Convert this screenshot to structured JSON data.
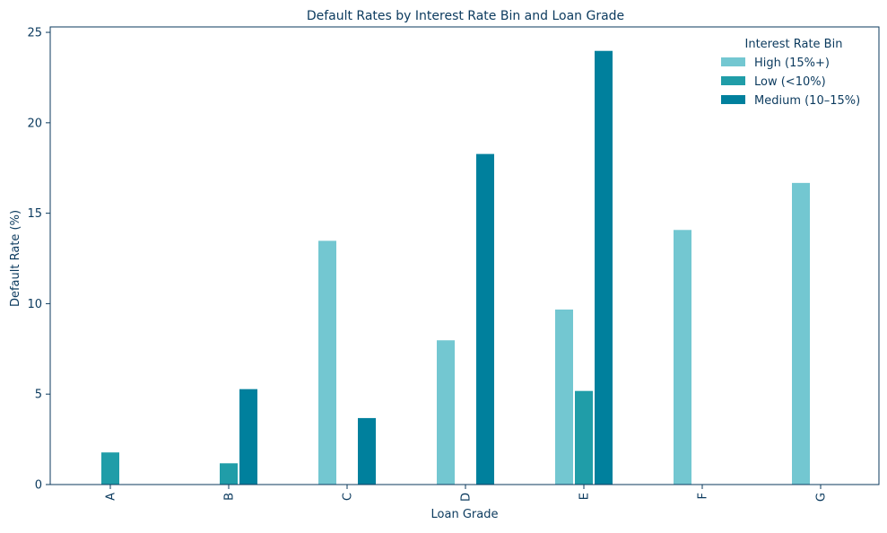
{
  "chart_data": {
    "type": "bar",
    "title": "Default Rates by Interest Rate Bin and Loan Grade",
    "xlabel": "Loan Grade",
    "ylabel": "Default Rate (%)",
    "categories": [
      "A",
      "B",
      "C",
      "D",
      "E",
      "F",
      "G"
    ],
    "ylim": [
      0,
      25.3
    ],
    "yticks": [
      0,
      5,
      10,
      15,
      20,
      25
    ],
    "grid": false,
    "legend": {
      "title": "Interest Rate Bin",
      "placement": "top-right"
    },
    "series": [
      {
        "name": "High (15%+)",
        "color": "#73c7d1",
        "values": [
          null,
          null,
          13.5,
          8.0,
          9.7,
          14.1,
          16.7
        ]
      },
      {
        "name": "Low (<10%)",
        "color": "#209da8",
        "values": [
          1.8,
          1.2,
          null,
          null,
          5.2,
          null,
          null
        ]
      },
      {
        "name": "Medium (10–15%)",
        "color": "#00809d",
        "values": [
          null,
          5.3,
          3.7,
          18.3,
          24.0,
          null,
          null
        ]
      }
    ],
    "colors": {
      "text": "#0b3a5e",
      "axis": "#0b3a5e"
    }
  }
}
